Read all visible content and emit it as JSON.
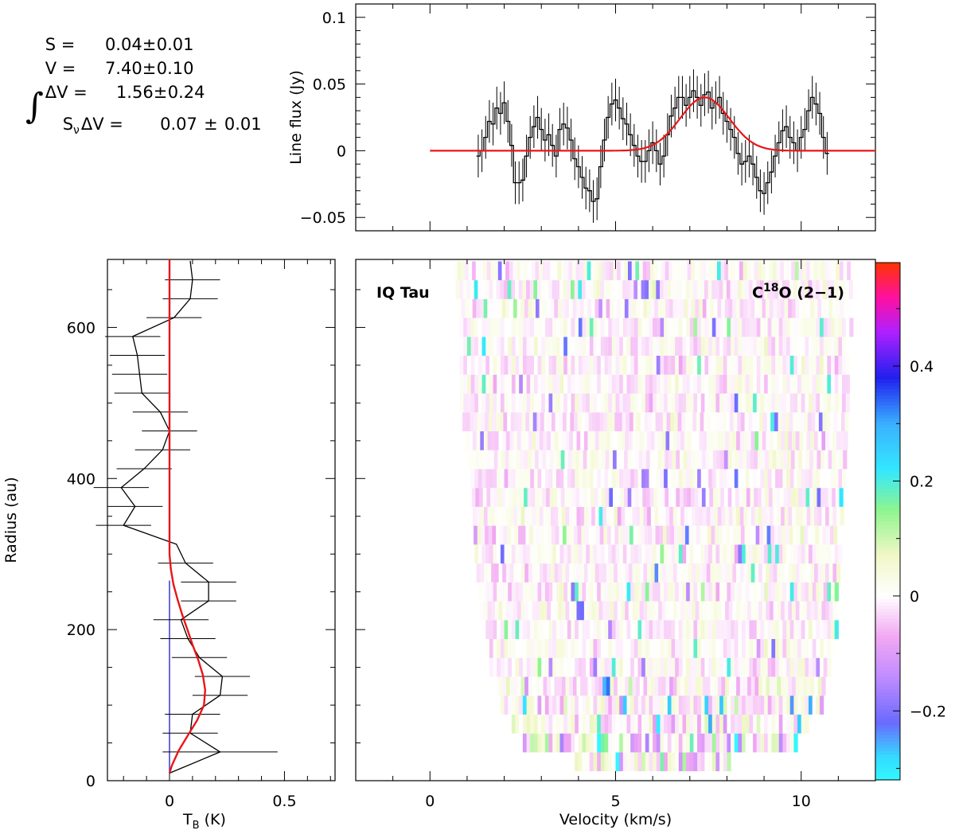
{
  "fit_stats": {
    "rows": [
      {
        "label": "S =",
        "value": "0.04",
        "pm": "±",
        "err": "0.01"
      },
      {
        "label": "V =",
        "value": "7.40",
        "pm": "±",
        "err": "0.10"
      },
      {
        "label": "ΔV =",
        "value": "1.56",
        "pm": "±",
        "err": "0.24"
      }
    ],
    "integral_label": "S",
    "integral_sub": "ν",
    "integral_tail": "ΔV =",
    "integral_value": "0.07",
    "integral_pm": "±",
    "integral_err": "0.01"
  },
  "chart_data": [
    {
      "type": "line",
      "panel": "spectrum",
      "ylabel": "Line flux (Jy)",
      "xlim": [
        -2,
        12
      ],
      "ylim": [
        -0.06,
        0.11
      ],
      "yticks": [
        -0.05,
        0,
        0.05,
        0.1
      ],
      "ytick_labels": [
        "−0.05",
        "0",
        "0.05",
        "0.1"
      ],
      "error": 0.016,
      "series": [
        {
          "style": "histogram-with-errorbars",
          "color": "#000000",
          "x": [
            1.3,
            1.4,
            1.5,
            1.6,
            1.7,
            1.8,
            1.9,
            2.0,
            2.1,
            2.2,
            2.3,
            2.4,
            2.5,
            2.6,
            2.7,
            2.8,
            2.9,
            3.0,
            3.1,
            3.2,
            3.3,
            3.4,
            3.5,
            3.6,
            3.7,
            3.8,
            3.9,
            4.0,
            4.1,
            4.2,
            4.3,
            4.4,
            4.5,
            4.6,
            4.7,
            4.8,
            4.9,
            5.0,
            5.1,
            5.2,
            5.3,
            5.4,
            5.5,
            5.6,
            5.7,
            5.8,
            5.9,
            6.0,
            6.1,
            6.2,
            6.3,
            6.4,
            6.5,
            6.6,
            6.7,
            6.8,
            6.9,
            7.0,
            7.1,
            7.2,
            7.3,
            7.4,
            7.5,
            7.6,
            7.7,
            7.8,
            7.9,
            8.0,
            8.1,
            8.2,
            8.3,
            8.4,
            8.5,
            8.6,
            8.7,
            8.8,
            8.9,
            9.0,
            9.1,
            9.2,
            9.3,
            9.4,
            9.5,
            9.6,
            9.7,
            9.8,
            9.9,
            10.0,
            10.1,
            10.2,
            10.3,
            10.4,
            10.5,
            10.6,
            10.7
          ],
          "y": [
            -0.004,
            0.0,
            0.01,
            0.022,
            0.02,
            0.032,
            0.028,
            0.036,
            0.022,
            0.004,
            -0.024,
            -0.024,
            -0.022,
            -0.004,
            0.01,
            0.018,
            0.025,
            0.016,
            0.008,
            0.012,
            0.004,
            -0.004,
            0.016,
            0.02,
            0.017,
            0.008,
            -0.006,
            -0.012,
            -0.02,
            -0.028,
            -0.03,
            -0.038,
            -0.036,
            -0.012,
            0.008,
            0.025,
            0.035,
            0.038,
            0.032,
            0.024,
            0.02,
            0.012,
            0.004,
            -0.004,
            -0.008,
            -0.008,
            0.0,
            0.006,
            0.0,
            -0.01,
            -0.004,
            0.012,
            0.026,
            0.032,
            0.04,
            0.04,
            0.034,
            0.04,
            0.045,
            0.04,
            0.034,
            0.042,
            0.044,
            0.032,
            0.036,
            0.04,
            0.028,
            0.022,
            0.016,
            0.01,
            -0.002,
            -0.01,
            -0.008,
            -0.004,
            -0.01,
            -0.02,
            -0.03,
            -0.032,
            -0.024,
            -0.016,
            -0.004,
            0.006,
            0.015,
            0.018,
            0.01,
            0.006,
            0.0,
            0.01,
            0.016,
            0.03,
            0.04,
            0.035,
            0.028,
            0.01,
            -0.002
          ]
        },
        {
          "style": "gaussian-fit",
          "color": "#e8161a",
          "amplitude": 0.04,
          "center": 7.4,
          "fwhm": 1.56,
          "x_range": [
            0,
            12
          ]
        }
      ]
    },
    {
      "type": "line",
      "panel": "radial-profile",
      "xlabel": "T",
      "xlabel_sub": "B",
      "xlabel_unit": "(K)",
      "ylabel": "Radius (au)",
      "xlim": [
        -0.27,
        0.72
      ],
      "ylim": [
        0,
        690
      ],
      "xticks": [
        0,
        0.5
      ],
      "xtick_labels": [
        "0",
        "0.5"
      ],
      "yticks": [
        0,
        200,
        400,
        600
      ],
      "ytick_labels": [
        "0",
        "200",
        "400",
        "600"
      ],
      "series": [
        {
          "style": "profile-with-xerr",
          "color": "#000000",
          "radius": [
            10,
            38,
            63,
            88,
            113,
            138,
            163,
            188,
            213,
            238,
            263,
            288,
            313,
            338,
            363,
            388,
            413,
            438,
            463,
            488,
            513,
            538,
            563,
            588,
            613,
            638,
            663,
            688
          ],
          "value": [
            0.0,
            0.22,
            0.09,
            0.1,
            0.22,
            0.23,
            0.13,
            0.08,
            0.05,
            0.17,
            0.17,
            0.07,
            0.03,
            -0.2,
            -0.15,
            -0.21,
            -0.11,
            -0.03,
            0.0,
            -0.04,
            -0.12,
            -0.13,
            -0.14,
            -0.16,
            0.02,
            0.09,
            0.1,
            0.09
          ],
          "xerr": [
            0.0,
            0.25,
            0.12,
            0.12,
            0.12,
            0.12,
            0.12,
            0.12,
            0.12,
            0.12,
            0.12,
            0.12,
            0.0,
            0.12,
            0.12,
            0.12,
            0.12,
            0.12,
            0.12,
            0.12,
            0.12,
            0.12,
            0.12,
            0.12,
            0.12,
            0.12,
            0.12,
            0.0
          ]
        },
        {
          "style": "model",
          "color": "#e8161a",
          "radius": [
            10,
            20,
            40,
            60,
            80,
            100,
            120,
            140,
            160,
            180,
            200,
            220,
            240,
            260,
            280,
            300,
            320,
            360,
            420,
            500,
            600,
            690
          ],
          "value": [
            0.0,
            0.01,
            0.04,
            0.08,
            0.12,
            0.15,
            0.155,
            0.145,
            0.125,
            0.1,
            0.078,
            0.055,
            0.035,
            0.017,
            0.006,
            0.0,
            0.0,
            0.0,
            0.0,
            0.0,
            0.0,
            0.0
          ]
        },
        {
          "style": "zero-line",
          "color": "#2a2acc",
          "value": 0,
          "radius_range": [
            10,
            265
          ]
        }
      ]
    },
    {
      "type": "heatmap",
      "panel": "position-velocity",
      "xlabel": "Velocity (km/s)",
      "xlim": [
        -2,
        12
      ],
      "xticks": [
        0,
        5,
        10
      ],
      "xtick_labels": [
        "0",
        "5",
        "10"
      ],
      "ylim": [
        0,
        690
      ],
      "source_label": "IQ Tau",
      "line_species": {
        "base": "C",
        "sup": "18",
        "rest": "O (2−1)"
      },
      "colorbar": {
        "range": [
          -0.32,
          0.58
        ],
        "ticks": [
          -0.2,
          0,
          0.2,
          0.4
        ],
        "tick_labels": [
          "−0.2",
          "0",
          "0.2",
          "0.4"
        ],
        "stops": [
          {
            "v": -0.32,
            "color": "#33f7ff"
          },
          {
            "v": -0.28,
            "color": "#33dcff"
          },
          {
            "v": -0.22,
            "color": "#6a6aff"
          },
          {
            "v": -0.14,
            "color": "#c08cff"
          },
          {
            "v": -0.07,
            "color": "#f2a8f2"
          },
          {
            "v": 0.0,
            "color": "#ffffff"
          },
          {
            "v": 0.07,
            "color": "#f2f7c8"
          },
          {
            "v": 0.15,
            "color": "#8ef58e"
          },
          {
            "v": 0.22,
            "color": "#33e8ff"
          },
          {
            "v": 0.3,
            "color": "#3ab0ff"
          },
          {
            "v": 0.38,
            "color": "#2020ee"
          },
          {
            "v": 0.46,
            "color": "#b020ff"
          },
          {
            "v": 0.52,
            "color": "#ff10a0"
          },
          {
            "v": 0.58,
            "color": "#ff3300"
          }
        ]
      },
      "envelope": {
        "radius": [
          25,
          50,
          100,
          150,
          200,
          300,
          400,
          500,
          600,
          690
        ],
        "v_min": [
          3.9,
          2.5,
          1.9,
          1.6,
          1.4,
          1.2,
          1.1,
          0.8,
          0.8,
          0.6
        ],
        "v_max": [
          8.0,
          9.8,
          10.5,
          10.7,
          10.9,
          11.0,
          11.1,
          11.2,
          11.3,
          11.4
        ]
      }
    }
  ]
}
